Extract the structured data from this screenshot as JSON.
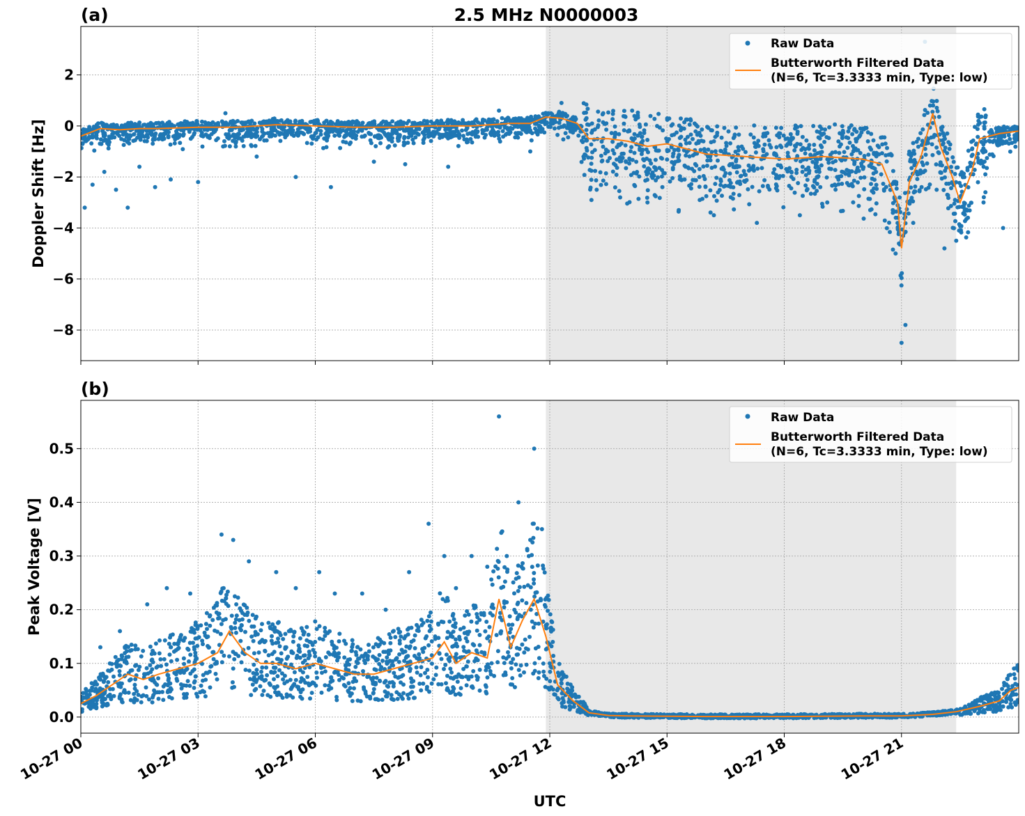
{
  "figure": {
    "title": "2.5 MHz N0000003",
    "xlabel": "UTC"
  },
  "colors": {
    "raw": "#1f77b4",
    "filtered": "#ff7f0e",
    "shade": "#e8e8e8",
    "grid": "#b0b0b0"
  },
  "legend": {
    "raw_label": "Raw Data",
    "filtered_label_line1": "Butterworth Filtered Data",
    "filtered_label_line2": "(N=6, Tc=3.3333 min, Type: low)",
    "placement": "upper right"
  },
  "shaded_interval_hours": [
    11.9,
    22.4
  ],
  "x_ticks": [
    {
      "hour": 0,
      "label": "10-27 00"
    },
    {
      "hour": 3,
      "label": "10-27 03"
    },
    {
      "hour": 6,
      "label": "10-27 06"
    },
    {
      "hour": 9,
      "label": "10-27 09"
    },
    {
      "hour": 12,
      "label": "10-27 12"
    },
    {
      "hour": 15,
      "label": "10-27 15"
    },
    {
      "hour": 18,
      "label": "10-27 18"
    },
    {
      "hour": 21,
      "label": "10-27 21"
    }
  ],
  "chart_data": [
    {
      "type": "scatter",
      "panel_label": "(a)",
      "ylabel": "Doppler Shift [Hz]",
      "xlim_hours": [
        0,
        24
      ],
      "ylim": [
        -9.2,
        3.9
      ],
      "y_ticks": [
        {
          "value": 2,
          "label": "2"
        },
        {
          "value": 0,
          "label": "0"
        },
        {
          "value": -2,
          "label": "−2"
        },
        {
          "value": -4,
          "label": "−4"
        },
        {
          "value": -6,
          "label": "−6"
        },
        {
          "value": -8,
          "label": "−8"
        }
      ],
      "grid": true,
      "series": [
        {
          "name": "Butterworth Filtered Data (N=6, Tc=3.3333 min, Type: low)",
          "kind": "line",
          "x_hours": [
            0,
            0.5,
            1,
            1.5,
            2,
            3,
            4,
            5,
            6,
            7,
            8,
            9,
            10,
            10.5,
            11,
            11.5,
            11.9,
            12.3,
            12.7,
            13.0,
            13.5,
            14,
            14.5,
            15,
            15.5,
            16,
            17,
            18,
            19,
            20,
            20.5,
            20.9,
            21.0,
            21.2,
            21.5,
            21.8,
            22.0,
            22.3,
            22.5,
            22.8,
            23,
            23.5,
            24
          ],
          "y": [
            -0.4,
            -0.1,
            -0.15,
            -0.1,
            -0.1,
            -0.05,
            -0.05,
            0.05,
            0.0,
            -0.05,
            -0.05,
            0.0,
            0.0,
            0.05,
            0.1,
            0.1,
            0.35,
            0.3,
            0.1,
            -0.5,
            -0.5,
            -0.6,
            -0.8,
            -0.7,
            -0.9,
            -1.1,
            -1.2,
            -1.3,
            -1.2,
            -1.3,
            -1.5,
            -3.0,
            -4.8,
            -2.2,
            -1.2,
            0.5,
            -0.8,
            -2.0,
            -3.0,
            -1.8,
            -0.5,
            -0.3,
            -0.2
          ]
        },
        {
          "name": "Raw Data",
          "kind": "scatter",
          "x_hours": [
            0.1,
            0.3,
            0.6,
            0.9,
            1.2,
            1.5,
            1.9,
            2.3,
            3.0,
            3.7,
            4.5,
            5.5,
            6.4,
            7.5,
            8.3,
            9.4,
            10.7,
            11.5,
            12.3,
            13.2,
            13.8,
            14.5,
            15.3,
            16.2,
            17.3,
            18.4,
            19.1,
            20.2,
            20.85,
            21.0,
            21.1,
            21.3,
            21.6,
            21.9,
            22.1,
            22.4,
            22.7,
            23.1,
            23.6
          ],
          "y": [
            -3.2,
            -2.3,
            -1.8,
            -2.5,
            -3.2,
            -1.6,
            -2.4,
            -2.1,
            -2.2,
            0.5,
            -1.2,
            -2.0,
            -2.4,
            -1.4,
            -1.5,
            -1.6,
            0.6,
            -1.0,
            0.9,
            -2.5,
            -2.8,
            -3.0,
            -3.3,
            -3.5,
            -3.8,
            -3.5,
            -3.0,
            -3.3,
            -5.0,
            -8.5,
            -7.8,
            -3.8,
            3.3,
            -2.5,
            -4.8,
            -4.5,
            -3.6,
            -3.0,
            -4.0
          ]
        }
      ]
    },
    {
      "type": "scatter",
      "panel_label": "(b)",
      "ylabel": "Peak Voltage [V]",
      "xlim_hours": [
        0,
        24
      ],
      "ylim": [
        -0.03,
        0.59
      ],
      "y_ticks": [
        {
          "value": 0.0,
          "label": "0.0"
        },
        {
          "value": 0.1,
          "label": "0.1"
        },
        {
          "value": 0.2,
          "label": "0.2"
        },
        {
          "value": 0.3,
          "label": "0.3"
        },
        {
          "value": 0.4,
          "label": "0.4"
        },
        {
          "value": 0.5,
          "label": "0.5"
        }
      ],
      "grid": true,
      "series": [
        {
          "name": "Butterworth Filtered Data (N=6, Tc=3.3333 min, Type: low)",
          "kind": "line",
          "x_hours": [
            0,
            0.4,
            0.8,
            1.2,
            1.6,
            2,
            2.5,
            3,
            3.5,
            3.8,
            4.2,
            4.6,
            5,
            5.5,
            6,
            6.5,
            7,
            7.5,
            8,
            8.5,
            9,
            9.3,
            9.6,
            10,
            10.4,
            10.7,
            11,
            11.3,
            11.6,
            11.9,
            12.2,
            12.6,
            13,
            13.5,
            14,
            16,
            18,
            20,
            21,
            21.8,
            22.4,
            23,
            23.5,
            23.8,
            24
          ],
          "y": [
            0.025,
            0.04,
            0.06,
            0.08,
            0.07,
            0.08,
            0.09,
            0.1,
            0.12,
            0.16,
            0.12,
            0.1,
            0.1,
            0.09,
            0.1,
            0.09,
            0.08,
            0.08,
            0.09,
            0.1,
            0.11,
            0.14,
            0.1,
            0.12,
            0.11,
            0.22,
            0.13,
            0.18,
            0.22,
            0.15,
            0.06,
            0.03,
            0.008,
            0.003,
            0.002,
            0.001,
            0.001,
            0.002,
            0.002,
            0.005,
            0.01,
            0.02,
            0.03,
            0.05,
            0.055
          ]
        },
        {
          "name": "Raw Data",
          "kind": "scatter",
          "x_hours": [
            0.5,
            1.0,
            1.7,
            2.2,
            2.8,
            3.6,
            3.9,
            4.3,
            5.0,
            5.5,
            6.1,
            6.5,
            7.2,
            7.8,
            8.4,
            8.9,
            9.3,
            9.6,
            10.0,
            10.4,
            10.7,
            10.9,
            11.2,
            11.5,
            11.6,
            11.8,
            12.0,
            12.3
          ],
          "y": [
            0.13,
            0.16,
            0.21,
            0.24,
            0.23,
            0.34,
            0.33,
            0.29,
            0.27,
            0.24,
            0.27,
            0.23,
            0.23,
            0.2,
            0.27,
            0.36,
            0.3,
            0.24,
            0.3,
            0.28,
            0.56,
            0.3,
            0.4,
            0.33,
            0.5,
            0.35,
            0.1,
            0.07
          ]
        }
      ]
    }
  ]
}
